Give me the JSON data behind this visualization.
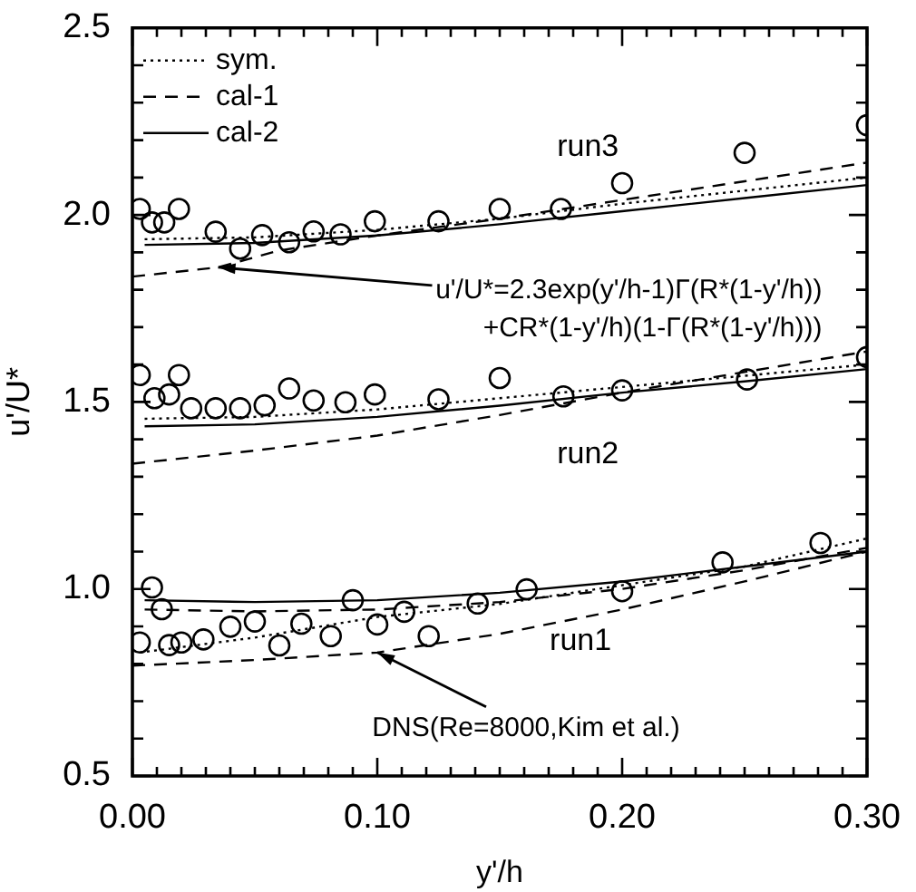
{
  "chart_data": {
    "type": "line",
    "xlabel": "y'/h",
    "ylabel": "u'/U*",
    "xlim": [
      0,
      0.3
    ],
    "ylim": [
      0.5,
      2.5
    ],
    "xticks": [
      {
        "value": 0,
        "label": "0.00"
      },
      {
        "value": 0.01,
        "label": null
      },
      {
        "value": 0.02,
        "label": null
      },
      {
        "value": 0.03,
        "label": null
      },
      {
        "value": 0.04,
        "label": null
      },
      {
        "value": 0.05,
        "label": null
      },
      {
        "value": 0.06,
        "label": null
      },
      {
        "value": 0.07,
        "label": null
      },
      {
        "value": 0.08,
        "label": null
      },
      {
        "value": 0.09,
        "label": null
      },
      {
        "value": 0.1,
        "label": "0.10"
      },
      {
        "value": 0.11,
        "label": null
      },
      {
        "value": 0.12,
        "label": null
      },
      {
        "value": 0.13,
        "label": null
      },
      {
        "value": 0.14,
        "label": null
      },
      {
        "value": 0.15,
        "label": null
      },
      {
        "value": 0.16,
        "label": null
      },
      {
        "value": 0.17,
        "label": null
      },
      {
        "value": 0.18,
        "label": null
      },
      {
        "value": 0.19,
        "label": null
      },
      {
        "value": 0.2,
        "label": "0.20"
      },
      {
        "value": 0.21,
        "label": null
      },
      {
        "value": 0.22,
        "label": null
      },
      {
        "value": 0.23,
        "label": null
      },
      {
        "value": 0.24,
        "label": null
      },
      {
        "value": 0.25,
        "label": null
      },
      {
        "value": 0.26,
        "label": null
      },
      {
        "value": 0.27,
        "label": null
      },
      {
        "value": 0.28,
        "label": null
      },
      {
        "value": 0.29,
        "label": null
      },
      {
        "value": 0.3,
        "label": "0.30"
      }
    ],
    "yticks": [
      {
        "value": 0.5,
        "label": "0.5"
      },
      {
        "value": 0.6,
        "label": null
      },
      {
        "value": 0.7,
        "label": null
      },
      {
        "value": 0.8,
        "label": null
      },
      {
        "value": 0.9,
        "label": null
      },
      {
        "value": 1.0,
        "label": "1.0"
      },
      {
        "value": 1.1,
        "label": null
      },
      {
        "value": 1.2,
        "label": null
      },
      {
        "value": 1.3,
        "label": null
      },
      {
        "value": 1.4,
        "label": null
      },
      {
        "value": 1.5,
        "label": "1.5"
      },
      {
        "value": 1.6,
        "label": null
      },
      {
        "value": 1.7,
        "label": null
      },
      {
        "value": 1.8,
        "label": null
      },
      {
        "value": 1.9,
        "label": null
      },
      {
        "value": 2.0,
        "label": "2.0"
      },
      {
        "value": 2.1,
        "label": null
      },
      {
        "value": 2.2,
        "label": null
      },
      {
        "value": 2.3,
        "label": null
      },
      {
        "value": 2.4,
        "label": null
      },
      {
        "value": 2.5,
        "label": "2.5"
      }
    ],
    "grid": false,
    "legend": "top left",
    "marker": "none",
    "series": [
      {
        "name": "sym.",
        "color": "#000000",
        "line_style": "dotted",
        "x": [
          0.005,
          0.05,
          0.1,
          0.15,
          0.2,
          0.25,
          0.3
        ],
        "values": [
          1.935,
          1.94,
          1.96,
          1.99,
          2.03,
          2.065,
          2.1
        ]
      },
      {
        "name": "cal-1",
        "color": "#000000",
        "line_style": "dashed",
        "x": [
          0,
          0.035,
          0.06,
          0.1,
          0.15,
          0.2,
          0.25,
          0.3
        ],
        "values": [
          1.835,
          1.86,
          1.905,
          1.945,
          1.99,
          2.04,
          2.09,
          2.14
        ]
      },
      {
        "name": "cal-2",
        "color": "#000000",
        "line_style": "solid",
        "x": [
          0.005,
          0.05,
          0.1,
          0.15,
          0.2,
          0.25,
          0.3
        ],
        "values": [
          1.92,
          1.925,
          1.945,
          1.975,
          2.01,
          2.045,
          2.08
        ]
      },
      {
        "color": "#000000",
        "line_style": "dotted",
        "x": [
          0.005,
          0.05,
          0.1,
          0.15,
          0.2,
          0.25,
          0.3
        ],
        "values": [
          1.455,
          1.46,
          1.48,
          1.51,
          1.54,
          1.57,
          1.6
        ]
      },
      {
        "color": "#000000",
        "line_style": "dashed",
        "x": [
          0,
          0.05,
          0.1,
          0.15,
          0.2,
          0.25,
          0.3
        ],
        "values": [
          1.335,
          1.37,
          1.41,
          1.465,
          1.525,
          1.58,
          1.635
        ]
      },
      {
        "color": "#000000",
        "line_style": "solid",
        "x": [
          0.005,
          0.05,
          0.1,
          0.15,
          0.2,
          0.25,
          0.3
        ],
        "values": [
          1.435,
          1.44,
          1.46,
          1.49,
          1.525,
          1.555,
          1.588
        ]
      },
      {
        "color": "#000000",
        "line_style": "dotted",
        "x": [
          0.003,
          0.05,
          0.1,
          0.15,
          0.2,
          0.25,
          0.3
        ],
        "values": [
          0.83,
          0.87,
          0.925,
          0.96,
          1.01,
          1.06,
          1.135
        ]
      },
      {
        "color": "#000000",
        "line_style": "dashed",
        "x": [
          0.005,
          0.05,
          0.1,
          0.15,
          0.2,
          0.25,
          0.3
        ],
        "values": [
          0.945,
          0.94,
          0.945,
          0.965,
          1.0,
          1.05,
          1.11
        ]
      },
      {
        "color": "#000000",
        "line_style": "solid",
        "x": [
          0.005,
          0.05,
          0.1,
          0.15,
          0.2,
          0.25,
          0.3
        ],
        "values": [
          0.97,
          0.965,
          0.97,
          0.99,
          1.02,
          1.06,
          1.1
        ]
      },
      {
        "color": "#000000",
        "line_style": "dashed",
        "x": [
          0,
          0.05,
          0.1,
          0.15,
          0.2,
          0.25,
          0.3
        ],
        "values": [
          0.795,
          0.81,
          0.83,
          0.88,
          0.945,
          1.02,
          1.1
        ]
      },
      {
        "type": "scatter",
        "marker": "circle",
        "color": "#000000",
        "x": [
          0.003,
          0.008,
          0.013,
          0.019,
          0.034,
          0.044,
          0.053,
          0.064,
          0.074,
          0.085,
          0.099,
          0.125,
          0.15,
          0.175,
          0.2,
          0.25,
          0.3,
          0.003,
          0.009,
          0.015,
          0.019,
          0.024,
          0.034,
          0.044,
          0.054,
          0.064,
          0.074,
          0.087,
          0.099,
          0.125,
          0.15,
          0.176,
          0.2,
          0.251,
          0.3,
          0.003,
          0.008,
          0.012,
          0.015,
          0.02,
          0.029,
          0.04,
          0.05,
          0.06,
          0.069,
          0.081,
          0.09,
          0.1,
          0.111,
          0.121,
          0.141,
          0.161,
          0.2,
          0.241,
          0.281
        ],
        "values": [
          2.016,
          1.98,
          1.98,
          2.016,
          1.955,
          1.91,
          1.946,
          1.927,
          1.956,
          1.948,
          1.983,
          1.983,
          2.016,
          2.016,
          2.085,
          2.166,
          2.24,
          1.572,
          1.51,
          1.52,
          1.572,
          1.483,
          1.483,
          1.483,
          1.491,
          1.536,
          1.504,
          1.499,
          1.52,
          1.507,
          1.564,
          1.515,
          1.531,
          1.56,
          1.62,
          0.857,
          1.004,
          0.946,
          0.85,
          0.857,
          0.865,
          0.899,
          0.913,
          0.849,
          0.907,
          0.874,
          0.97,
          0.905,
          0.939,
          0.874,
          0.961,
          0.999,
          0.994,
          1.071,
          1.123
        ]
      }
    ],
    "annotations": [
      "run3",
      "run2",
      "run1",
      {
        "text": "u'/U*=2.3exp(y'/h-1)Γ(R*(1-y'/h))\n+CR*(1-y'/h)(1-Γ(R*(1-y'/h)))",
        "x": 0.035,
        "y": 1.86
      },
      {
        "text": "DNS(Re=8000,Kim et al.)",
        "x": 0.1,
        "y": 0.83
      }
    ]
  }
}
